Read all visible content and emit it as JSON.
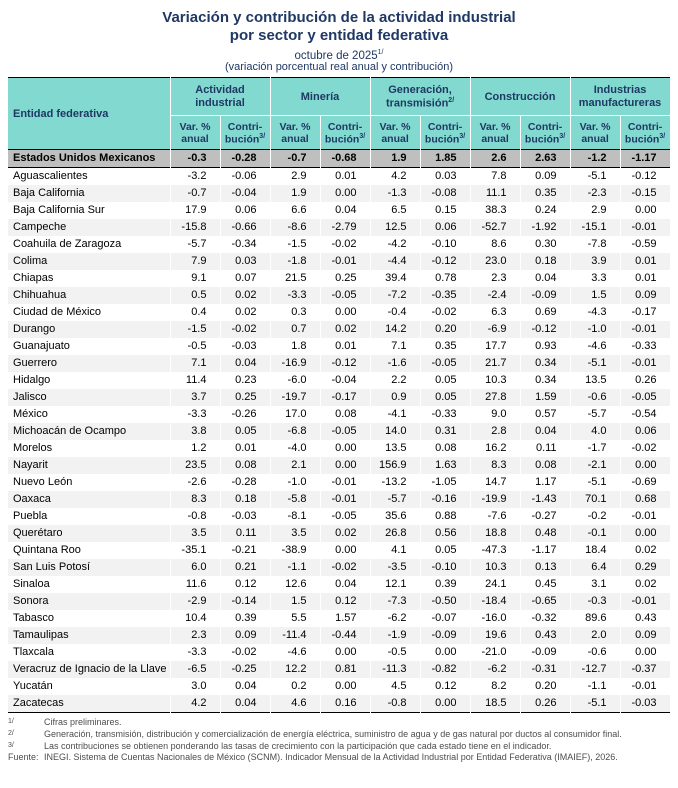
{
  "title": {
    "line1": "Variación y contribución de la actividad industrial",
    "line2": "por sector y entidad federativa",
    "date": "octubre de 2025",
    "date_sup": "1/",
    "subtitle": "(variación porcentual real anual y contribución)"
  },
  "colors": {
    "header_teal": "#82D9CF",
    "title_navy": "#1F3864",
    "total_row_gray": "#BFBFBF",
    "alt_row_gray": "#F2F2F2"
  },
  "table": {
    "entity_header": "Entidad federativa",
    "groups": [
      {
        "id": "actividad-industrial",
        "label": "Actividad industrial",
        "sup": ""
      },
      {
        "id": "mineria",
        "label": "Minería",
        "sup": ""
      },
      {
        "id": "generacion-transmision",
        "label": "Generación, transmisión",
        "sup": "2/"
      },
      {
        "id": "construccion",
        "label": "Construcción",
        "sup": ""
      },
      {
        "id": "industrias-manufactureras",
        "label": "Industrias manufactureras",
        "sup": ""
      }
    ],
    "subheaders": {
      "var_line1": "Var. %",
      "var_line2": "anual",
      "contrib_line1": "Contri-",
      "contrib_line2": "bución",
      "contrib_sup": "3/"
    },
    "total_row": {
      "name": "Estados Unidos Mexicanos",
      "values": [
        "-0.3",
        "-0.28",
        "-0.7",
        "-0.68",
        "1.9",
        "1.85",
        "2.6",
        "2.63",
        "-1.2",
        "-1.17"
      ]
    },
    "rows": [
      {
        "name": "Aguascalientes",
        "values": [
          "-3.2",
          "-0.06",
          "2.9",
          "0.01",
          "4.2",
          "0.03",
          "7.8",
          "0.09",
          "-5.1",
          "-0.12"
        ]
      },
      {
        "name": "Baja California",
        "values": [
          "-0.7",
          "-0.04",
          "1.9",
          "0.00",
          "-1.3",
          "-0.08",
          "11.1",
          "0.35",
          "-2.3",
          "-0.15"
        ]
      },
      {
        "name": "Baja California Sur",
        "values": [
          "17.9",
          "0.06",
          "6.6",
          "0.04",
          "6.5",
          "0.15",
          "38.3",
          "0.24",
          "2.9",
          "0.00"
        ]
      },
      {
        "name": "Campeche",
        "values": [
          "-15.8",
          "-0.66",
          "-8.6",
          "-2.79",
          "12.5",
          "0.06",
          "-52.7",
          "-1.92",
          "-15.1",
          "-0.01"
        ]
      },
      {
        "name": "Coahuila de Zaragoza",
        "values": [
          "-5.7",
          "-0.34",
          "-1.5",
          "-0.02",
          "-4.2",
          "-0.10",
          "8.6",
          "0.30",
          "-7.8",
          "-0.59"
        ]
      },
      {
        "name": "Colima",
        "values": [
          "7.9",
          "0.03",
          "-1.8",
          "-0.01",
          "-4.4",
          "-0.12",
          "23.0",
          "0.18",
          "3.9",
          "0.01"
        ]
      },
      {
        "name": "Chiapas",
        "values": [
          "9.1",
          "0.07",
          "21.5",
          "0.25",
          "39.4",
          "0.78",
          "2.3",
          "0.04",
          "3.3",
          "0.01"
        ]
      },
      {
        "name": "Chihuahua",
        "values": [
          "0.5",
          "0.02",
          "-3.3",
          "-0.05",
          "-7.2",
          "-0.35",
          "-2.4",
          "-0.09",
          "1.5",
          "0.09"
        ]
      },
      {
        "name": "Ciudad de México",
        "values": [
          "0.4",
          "0.02",
          "0.3",
          "0.00",
          "-0.4",
          "-0.02",
          "6.3",
          "0.69",
          "-4.3",
          "-0.17"
        ]
      },
      {
        "name": "Durango",
        "values": [
          "-1.5",
          "-0.02",
          "0.7",
          "0.02",
          "14.2",
          "0.20",
          "-6.9",
          "-0.12",
          "-1.0",
          "-0.01"
        ]
      },
      {
        "name": "Guanajuato",
        "values": [
          "-0.5",
          "-0.03",
          "1.8",
          "0.01",
          "7.1",
          "0.35",
          "17.7",
          "0.93",
          "-4.6",
          "-0.33"
        ]
      },
      {
        "name": "Guerrero",
        "values": [
          "7.1",
          "0.04",
          "-16.9",
          "-0.12",
          "-1.6",
          "-0.05",
          "21.7",
          "0.34",
          "-5.1",
          "-0.01"
        ]
      },
      {
        "name": "Hidalgo",
        "values": [
          "11.4",
          "0.23",
          "-6.0",
          "-0.04",
          "2.2",
          "0.05",
          "10.3",
          "0.34",
          "13.5",
          "0.26"
        ]
      },
      {
        "name": "Jalisco",
        "values": [
          "3.7",
          "0.25",
          "-19.7",
          "-0.17",
          "0.9",
          "0.05",
          "27.8",
          "1.59",
          "-0.6",
          "-0.05"
        ]
      },
      {
        "name": "México",
        "values": [
          "-3.3",
          "-0.26",
          "17.0",
          "0.08",
          "-4.1",
          "-0.33",
          "9.0",
          "0.57",
          "-5.7",
          "-0.54"
        ]
      },
      {
        "name": "Michoacán de Ocampo",
        "values": [
          "3.8",
          "0.05",
          "-6.8",
          "-0.05",
          "14.0",
          "0.31",
          "2.8",
          "0.04",
          "4.0",
          "0.06"
        ]
      },
      {
        "name": "Morelos",
        "values": [
          "1.2",
          "0.01",
          "-4.0",
          "0.00",
          "13.5",
          "0.08",
          "16.2",
          "0.11",
          "-1.7",
          "-0.02"
        ]
      },
      {
        "name": "Nayarit",
        "values": [
          "23.5",
          "0.08",
          "2.1",
          "0.00",
          "156.9",
          "1.63",
          "8.3",
          "0.08",
          "-2.1",
          "0.00"
        ]
      },
      {
        "name": "Nuevo León",
        "values": [
          "-2.6",
          "-0.28",
          "-1.0",
          "-0.01",
          "-13.2",
          "-1.05",
          "14.7",
          "1.17",
          "-5.1",
          "-0.69"
        ]
      },
      {
        "name": "Oaxaca",
        "values": [
          "8.3",
          "0.18",
          "-5.8",
          "-0.01",
          "-5.7",
          "-0.16",
          "-19.9",
          "-1.43",
          "70.1",
          "0.68"
        ]
      },
      {
        "name": "Puebla",
        "values": [
          "-0.8",
          "-0.03",
          "-8.1",
          "-0.05",
          "35.6",
          "0.88",
          "-7.6",
          "-0.27",
          "-0.2",
          "-0.01"
        ]
      },
      {
        "name": "Querétaro",
        "values": [
          "3.5",
          "0.11",
          "3.5",
          "0.02",
          "26.8",
          "0.56",
          "18.8",
          "0.48",
          "-0.1",
          "0.00"
        ]
      },
      {
        "name": "Quintana Roo",
        "values": [
          "-35.1",
          "-0.21",
          "-38.9",
          "0.00",
          "4.1",
          "0.05",
          "-47.3",
          "-1.17",
          "18.4",
          "0.02"
        ]
      },
      {
        "name": "San Luis Potosí",
        "values": [
          "6.0",
          "0.21",
          "-1.1",
          "-0.02",
          "-3.5",
          "-0.10",
          "10.3",
          "0.13",
          "6.4",
          "0.29"
        ]
      },
      {
        "name": "Sinaloa",
        "values": [
          "11.6",
          "0.12",
          "12.6",
          "0.04",
          "12.1",
          "0.39",
          "24.1",
          "0.45",
          "3.1",
          "0.02"
        ]
      },
      {
        "name": "Sonora",
        "values": [
          "-2.9",
          "-0.14",
          "1.5",
          "0.12",
          "-7.3",
          "-0.50",
          "-18.4",
          "-0.65",
          "-0.3",
          "-0.01"
        ]
      },
      {
        "name": "Tabasco",
        "values": [
          "10.4",
          "0.39",
          "5.5",
          "1.57",
          "-6.2",
          "-0.07",
          "-16.0",
          "-0.32",
          "89.6",
          "0.43"
        ]
      },
      {
        "name": "Tamaulipas",
        "values": [
          "2.3",
          "0.09",
          "-11.4",
          "-0.44",
          "-1.9",
          "-0.09",
          "19.6",
          "0.43",
          "2.0",
          "0.09"
        ]
      },
      {
        "name": "Tlaxcala",
        "values": [
          "-3.3",
          "-0.02",
          "-4.6",
          "0.00",
          "-0.5",
          "0.00",
          "-21.0",
          "-0.09",
          "-0.6",
          "0.00"
        ]
      },
      {
        "name": "Veracruz de Ignacio de la Llave",
        "values": [
          "-6.5",
          "-0.25",
          "12.2",
          "0.81",
          "-11.3",
          "-0.82",
          "-6.2",
          "-0.31",
          "-12.7",
          "-0.37"
        ]
      },
      {
        "name": "Yucatán",
        "values": [
          "3.0",
          "0.04",
          "0.2",
          "0.00",
          "4.5",
          "0.12",
          "8.2",
          "0.20",
          "-1.1",
          "-0.01"
        ]
      },
      {
        "name": "Zacatecas",
        "values": [
          "4.2",
          "0.04",
          "4.6",
          "0.16",
          "-0.8",
          "0.00",
          "18.5",
          "0.26",
          "-5.1",
          "-0.03"
        ]
      }
    ]
  },
  "footnotes": [
    {
      "marker": "1/",
      "text": "Cifras preliminares."
    },
    {
      "marker": "2/",
      "text": "Generación, transmisión, distribución y comercialización de energía eléctrica, suministro de agua y de gas natural por ductos al consumidor final."
    },
    {
      "marker": "3/",
      "text": "Las contribuciones se obtienen ponderando las tasas de crecimiento con la participación que cada estado tiene en el indicador."
    }
  ],
  "source": {
    "label": "Fuente:",
    "text": "INEGI. Sistema de Cuentas Nacionales de México (SCNM). Indicador Mensual de la Actividad Industrial por Entidad Federativa (IMAIEF), 2026."
  }
}
